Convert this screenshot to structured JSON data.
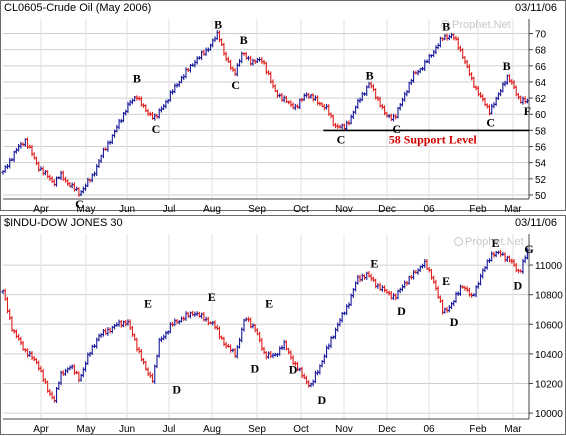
{
  "chart_data": [
    {
      "type": "bar",
      "style": "ohlc",
      "title": "CL0605-Crude Oil (May 2006)",
      "date": "03/11/06",
      "watermark": "Prophet.Net",
      "x_labels": [
        "Apr",
        "May",
        "Jun",
        "Jul",
        "Aug",
        "Sep",
        "Oct",
        "Nov",
        "Dec",
        "06",
        "Feb",
        "Mar"
      ],
      "y_ticks": [
        50,
        52,
        54,
        56,
        58,
        60,
        62,
        64,
        66,
        68,
        70
      ],
      "ylim": [
        49.5,
        71.8
      ],
      "grid": true,
      "up_color": "#1a1a9a",
      "down_color": "#e02020",
      "anchors": [
        [
          0,
          52.8
        ],
        [
          8,
          55.5
        ],
        [
          14,
          56.8
        ],
        [
          22,
          53.5
        ],
        [
          32,
          51.5
        ],
        [
          36,
          52.5
        ],
        [
          40,
          51.6
        ],
        [
          48,
          50.2
        ],
        [
          56,
          52.3
        ],
        [
          62,
          55.0
        ],
        [
          70,
          57.8
        ],
        [
          78,
          61.0
        ],
        [
          84,
          62.3
        ],
        [
          90,
          60.2
        ],
        [
          96,
          59.6
        ],
        [
          102,
          61.5
        ],
        [
          110,
          64.0
        ],
        [
          120,
          66.5
        ],
        [
          128,
          68.0
        ],
        [
          135,
          70.0
        ],
        [
          140,
          66.8
        ],
        [
          145,
          65.0
        ],
        [
          150,
          67.5
        ],
        [
          156,
          66.5
        ],
        [
          163,
          66.7
        ],
        [
          170,
          63.0
        ],
        [
          176,
          61.8
        ],
        [
          184,
          60.8
        ],
        [
          190,
          62.6
        ],
        [
          197,
          61.6
        ],
        [
          203,
          60.7
        ],
        [
          208,
          58.6
        ],
        [
          214,
          58.3
        ],
        [
          218,
          59.5
        ],
        [
          224,
          62.0
        ],
        [
          230,
          63.8
        ],
        [
          236,
          61.5
        ],
        [
          240,
          59.8
        ],
        [
          246,
          59.6
        ],
        [
          252,
          62.5
        ],
        [
          258,
          65.0
        ],
        [
          264,
          66.0
        ],
        [
          270,
          67.8
        ],
        [
          276,
          69.5
        ],
        [
          282,
          69.8
        ],
        [
          288,
          67.5
        ],
        [
          294,
          64.2
        ],
        [
          300,
          62.0
        ],
        [
          305,
          60.4
        ],
        [
          310,
          62.0
        ],
        [
          316,
          64.7
        ],
        [
          320,
          63.5
        ],
        [
          324,
          61.8
        ],
        [
          329,
          61.5
        ]
      ],
      "support": {
        "value": 58,
        "label": "58 Support Level"
      },
      "annotations": [
        {
          "text": "B",
          "x": 84,
          "y": 64.4
        },
        {
          "text": "C",
          "x": 96,
          "y": 58.2
        },
        {
          "text": "B",
          "x": 135,
          "y": 71.1
        },
        {
          "text": "C",
          "x": 146,
          "y": 63.6
        },
        {
          "text": "B",
          "x": 151,
          "y": 69.2
        },
        {
          "text": "C",
          "x": 48,
          "y": 48.9
        },
        {
          "text": "C",
          "x": 212,
          "y": 56.9
        },
        {
          "text": "B",
          "x": 230,
          "y": 64.8
        },
        {
          "text": "C",
          "x": 247,
          "y": 58.2
        },
        {
          "text": "B",
          "x": 278,
          "y": 70.9
        },
        {
          "text": "C",
          "x": 306,
          "y": 59.0
        },
        {
          "text": "B",
          "x": 316,
          "y": 66.0
        },
        {
          "text": "F",
          "x": 329,
          "y": 60.4
        }
      ]
    },
    {
      "type": "bar",
      "style": "ohlc",
      "title": "$INDU-DOW JONES 30",
      "date": "03/11/06",
      "watermark": "Prophet.Net",
      "x_labels": [
        "Apr",
        "May",
        "Jun",
        "Jul",
        "Aug",
        "Sep",
        "Oct",
        "Nov",
        "Dec",
        "06",
        "Feb",
        "Mar"
      ],
      "y_ticks": [
        10000,
        10200,
        10400,
        10600,
        10800,
        11000
      ],
      "ylim": [
        9960,
        11210
      ],
      "grid": true,
      "up_color": "#1a1a9a",
      "down_color": "#e02020",
      "anchors": [
        [
          0,
          10820
        ],
        [
          6,
          10560
        ],
        [
          14,
          10420
        ],
        [
          22,
          10330
        ],
        [
          28,
          10150
        ],
        [
          32,
          10090
        ],
        [
          36,
          10250
        ],
        [
          42,
          10320
        ],
        [
          48,
          10230
        ],
        [
          54,
          10400
        ],
        [
          60,
          10520
        ],
        [
          66,
          10560
        ],
        [
          72,
          10600
        ],
        [
          78,
          10620
        ],
        [
          84,
          10450
        ],
        [
          90,
          10280
        ],
        [
          94,
          10230
        ],
        [
          98,
          10480
        ],
        [
          106,
          10600
        ],
        [
          114,
          10650
        ],
        [
          120,
          10680
        ],
        [
          126,
          10640
        ],
        [
          132,
          10600
        ],
        [
          140,
          10450
        ],
        [
          146,
          10400
        ],
        [
          152,
          10650
        ],
        [
          158,
          10570
        ],
        [
          164,
          10400
        ],
        [
          170,
          10380
        ],
        [
          176,
          10470
        ],
        [
          182,
          10350
        ],
        [
          188,
          10250
        ],
        [
          193,
          10180
        ],
        [
          198,
          10300
        ],
        [
          204,
          10450
        ],
        [
          210,
          10600
        ],
        [
          216,
          10720
        ],
        [
          222,
          10900
        ],
        [
          228,
          10940
        ],
        [
          234,
          10870
        ],
        [
          240,
          10820
        ],
        [
          246,
          10780
        ],
        [
          252,
          10880
        ],
        [
          258,
          10940
        ],
        [
          264,
          11020
        ],
        [
          270,
          10900
        ],
        [
          276,
          10680
        ],
        [
          282,
          10740
        ],
        [
          288,
          10870
        ],
        [
          294,
          10780
        ],
        [
          300,
          10930
        ],
        [
          306,
          11070
        ],
        [
          312,
          11080
        ],
        [
          318,
          11030
        ],
        [
          324,
          10950
        ],
        [
          329,
          11090
        ]
      ],
      "annotations": [
        {
          "text": "E",
          "x": 91,
          "y": 10742
        },
        {
          "text": "D",
          "x": 109,
          "y": 10160
        },
        {
          "text": "E",
          "x": 131,
          "y": 10785
        },
        {
          "text": "D",
          "x": 158,
          "y": 10300
        },
        {
          "text": "E",
          "x": 167,
          "y": 10742
        },
        {
          "text": "D",
          "x": 182,
          "y": 10295
        },
        {
          "text": "D",
          "x": 200,
          "y": 10090
        },
        {
          "text": "E",
          "x": 233,
          "y": 11010
        },
        {
          "text": "D",
          "x": 250,
          "y": 10690
        },
        {
          "text": "E",
          "x": 278,
          "y": 10892
        },
        {
          "text": "D",
          "x": 283,
          "y": 10615
        },
        {
          "text": "E",
          "x": 309,
          "y": 11150
        },
        {
          "text": "G",
          "x": 330,
          "y": 11110
        },
        {
          "text": "D",
          "x": 323,
          "y": 10862
        }
      ]
    }
  ]
}
